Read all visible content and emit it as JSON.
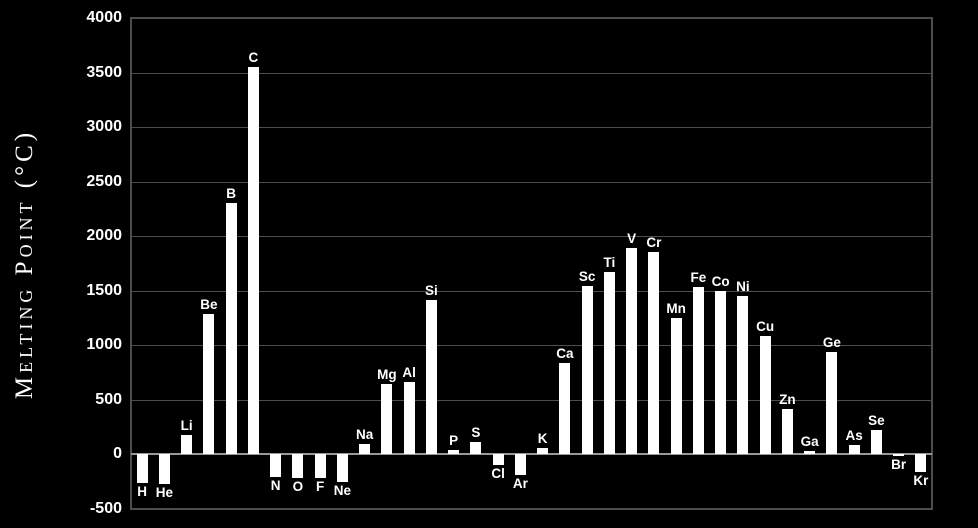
{
  "y_axis": {
    "title": "Melting Point (°C)",
    "ticks": [
      "4000",
      "3500",
      "3000",
      "2500",
      "2000",
      "1500",
      "1000",
      "500",
      "0",
      "-500"
    ]
  },
  "colors": {
    "background": "#000000",
    "bar": "#ffffff",
    "grid": "#4d4d4d",
    "axis_border": "#4d4d4d",
    "zero_line": "#999999",
    "text": "#ffffff"
  },
  "chart_data": {
    "type": "bar",
    "title": "",
    "xlabel": "",
    "ylabel": "Melting Point (°C)",
    "ylim": [
      -500,
      4000
    ],
    "ytick_step": 500,
    "grid": true,
    "legend_position": "none",
    "categories": [
      "H",
      "He",
      "Li",
      "Be",
      "B",
      "C",
      "N",
      "O",
      "F",
      "Ne",
      "Na",
      "Mg",
      "Al",
      "Si",
      "P",
      "S",
      "Cl",
      "Ar",
      "K",
      "Ca",
      "Sc",
      "Ti",
      "V",
      "Cr",
      "Mn",
      "Fe",
      "Co",
      "Ni",
      "Cu",
      "Zn",
      "Ga",
      "Ge",
      "As",
      "Se",
      "Br",
      "Kr"
    ],
    "values": [
      -259,
      -272,
      180,
      1287,
      2300,
      3550,
      -210,
      -218,
      -220,
      -249,
      98,
      650,
      660,
      1414,
      44,
      115,
      -101,
      -189,
      63,
      842,
      1541,
      1668,
      1890,
      1857,
      1246,
      1538,
      1495,
      1455,
      1085,
      420,
      30,
      938,
      90,
      221,
      -7,
      -157
    ]
  }
}
